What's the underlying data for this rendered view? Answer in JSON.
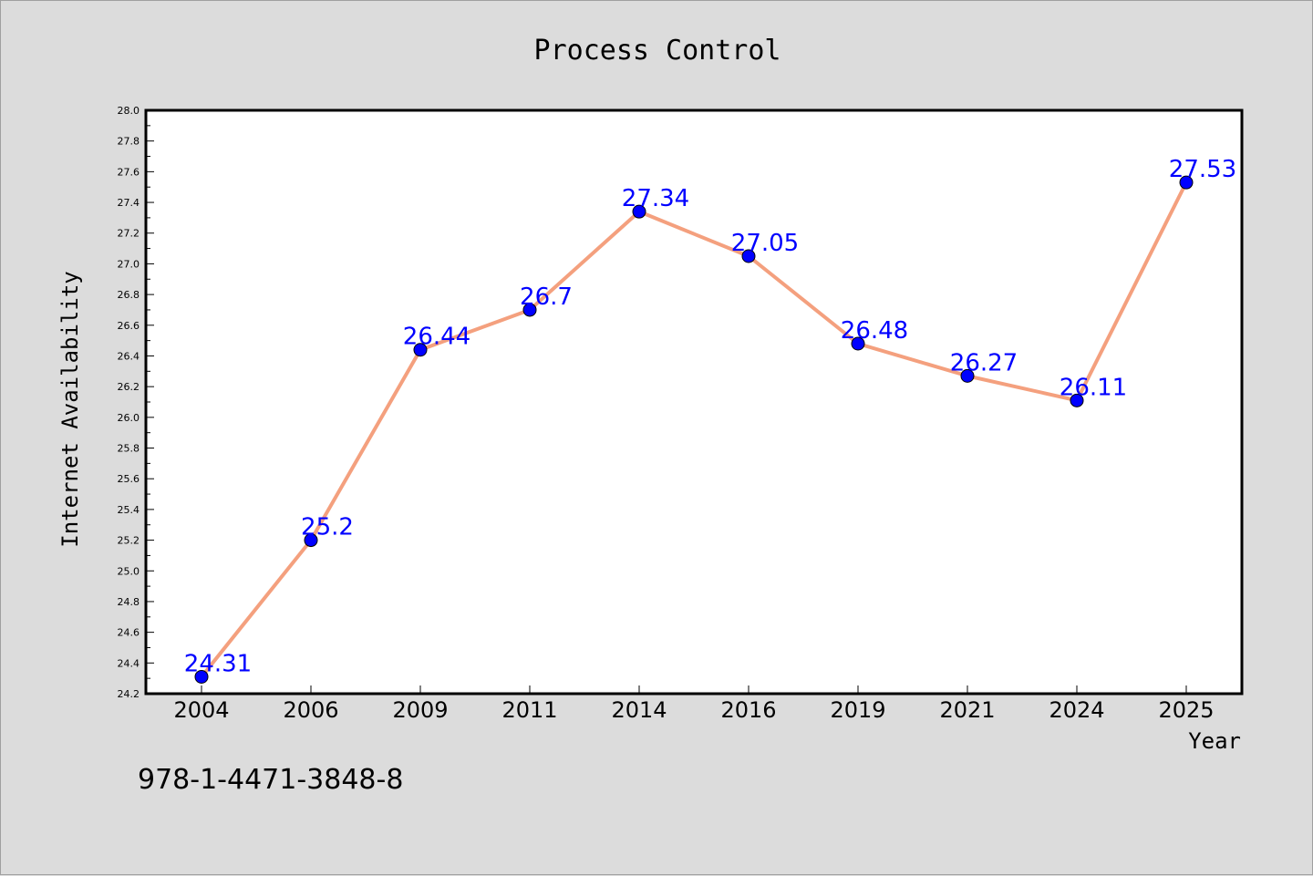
{
  "chart_data": {
    "type": "line",
    "title": "Process Control",
    "xlabel": "Year",
    "ylabel": "Internet Availability",
    "categories": [
      "2004",
      "2006",
      "2009",
      "2011",
      "2014",
      "2016",
      "2019",
      "2021",
      "2024",
      "2025"
    ],
    "values": [
      24.31,
      25.2,
      26.44,
      26.7,
      27.34,
      27.05,
      26.48,
      26.27,
      26.11,
      27.53
    ],
    "data_labels": [
      "24.31",
      "25.2",
      "26.44",
      "26.7",
      "27.34",
      "27.05",
      "26.48",
      "26.27",
      "26.11",
      "27.53"
    ],
    "ylim": [
      24.2,
      28.0
    ],
    "yticks": [
      "24.2",
      "24.4",
      "24.6",
      "24.8",
      "25.0",
      "25.2",
      "25.4",
      "25.6",
      "25.8",
      "26.0",
      "26.2",
      "26.4",
      "26.6",
      "26.8",
      "27.0",
      "27.2",
      "27.4",
      "27.6",
      "27.8",
      "28.0"
    ],
    "grid": false,
    "line_color": "#f4a07e",
    "marker_color": "#0000ff",
    "label_color": "#0000ff"
  },
  "footer": {
    "text": "978-1-4471-3848-8"
  }
}
